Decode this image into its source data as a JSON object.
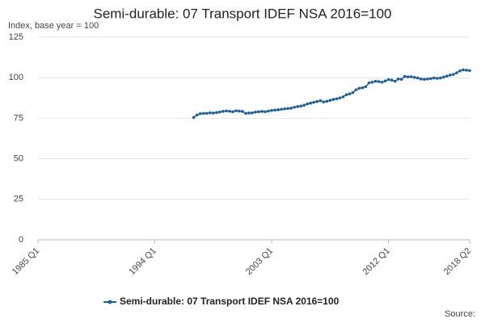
{
  "chart_data": {
    "type": "line",
    "title": "Semi-durable: 07 Transport IDEF NSA 2016=100",
    "y_label": "Index, base year = 100",
    "source": "Source:",
    "categories": [
      "1985 Q1",
      null,
      null,
      null,
      null,
      null,
      null,
      null,
      null,
      null,
      null,
      null,
      null,
      null,
      null,
      null,
      null,
      null,
      null,
      null,
      null,
      null,
      null,
      null,
      null,
      null,
      null,
      null,
      null,
      null,
      null,
      null,
      null,
      null,
      null,
      null,
      "1994 Q1",
      null,
      null,
      null,
      null,
      null,
      null,
      null,
      null,
      null,
      null,
      null,
      null,
      null,
      null,
      null,
      null,
      null,
      null,
      null,
      null,
      null,
      null,
      null,
      null,
      null,
      null,
      null,
      null,
      null,
      null,
      null,
      null,
      null,
      null,
      null,
      "2003 Q1",
      null,
      null,
      null,
      null,
      null,
      null,
      null,
      null,
      null,
      null,
      null,
      null,
      null,
      null,
      null,
      null,
      null,
      null,
      null,
      null,
      null,
      null,
      null,
      null,
      null,
      null,
      null,
      null,
      null,
      null,
      null,
      null,
      null,
      null,
      null,
      "2012 Q1",
      null,
      null,
      null,
      null,
      null,
      null,
      null,
      null,
      null,
      null,
      null,
      null,
      null,
      null,
      null,
      null,
      null,
      null,
      null,
      null,
      null,
      null,
      null,
      null,
      "2018 Q2"
    ],
    "series": [
      {
        "name": "Semi-durable: 07 Transport IDEF NSA 2016=100",
        "color": "#206095",
        "values": [
          null,
          null,
          null,
          null,
          null,
          null,
          null,
          null,
          null,
          null,
          null,
          null,
          null,
          null,
          null,
          null,
          null,
          null,
          null,
          null,
          null,
          null,
          null,
          null,
          null,
          null,
          null,
          null,
          null,
          null,
          null,
          null,
          null,
          null,
          null,
          null,
          null,
          null,
          null,
          null,
          null,
          null,
          null,
          null,
          null,
          null,
          null,
          null,
          75.5,
          77,
          77.8,
          78,
          78,
          78.3,
          78.2,
          78.5,
          78.8,
          79.2,
          79.5,
          79.3,
          79,
          79.6,
          79.4,
          79.2,
          78,
          78.2,
          78.3,
          78.8,
          79,
          79.2,
          79,
          79.4,
          79.8,
          80,
          80.2,
          80.5,
          80.8,
          81,
          81.2,
          81.8,
          82.2,
          82.5,
          83,
          83.8,
          84.3,
          84.8,
          85.3,
          85.8,
          85,
          85.5,
          86,
          86.6,
          87,
          87.5,
          88.2,
          89.5,
          90,
          90.8,
          92.5,
          93.5,
          93.8,
          94.5,
          96.8,
          97.2,
          97.8,
          97.6,
          97.2,
          98,
          98.8,
          98.5,
          97.8,
          99.2,
          99,
          100.8,
          100.5,
          100.6,
          100.2,
          99.8,
          99.2,
          99,
          99.2,
          99.4,
          99.8,
          99.6,
          99.8,
          100.4,
          101,
          101.6,
          102,
          103,
          104.2,
          104.8,
          104.6,
          104.4
        ]
      }
    ],
    "ylim": [
      0,
      125
    ],
    "yticks": [
      0,
      25,
      50,
      75,
      100,
      125
    ],
    "grid": true
  }
}
